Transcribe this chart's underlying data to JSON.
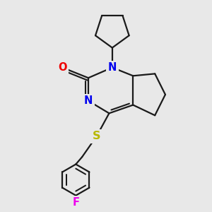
{
  "bg_color": "#e8e8e8",
  "bond_color": "#1a1a1a",
  "N_color": "#0000ee",
  "O_color": "#ee0000",
  "S_color": "#b8b800",
  "F_color": "#ee00ee",
  "bond_width": 1.6,
  "font_size": 10.5,
  "xlim": [
    0,
    10
  ],
  "ylim": [
    0,
    10
  ]
}
